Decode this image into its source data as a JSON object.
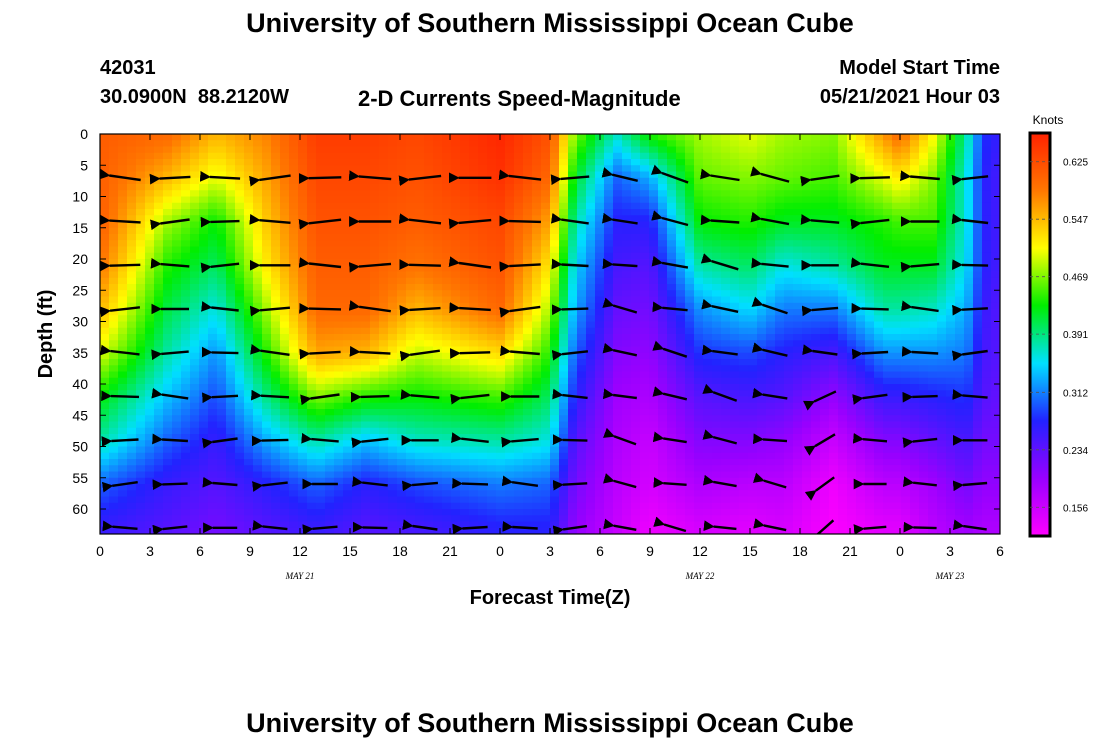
{
  "page": {
    "title_top": "University of Southern Mississippi Ocean Cube",
    "title_bottom": "University of Southern Mississippi Ocean Cube",
    "station_id": "42031",
    "location": "30.0900N  88.2120W",
    "plot_title": "2-D Currents Speed-Magnitude",
    "model_start_label": "Model Start Time",
    "model_start_value": "05/21/2021 Hour 03"
  },
  "colors": {
    "ramp": [
      "#ff00ff",
      "#9900ff",
      "#2222ff",
      "#00e0ff",
      "#00ee00",
      "#ffff00",
      "#ff7700",
      "#ff2200"
    ],
    "arrow": "#000000"
  },
  "chart_data": {
    "type": "heatmap",
    "title": "2-D Currents Speed-Magnitude",
    "xlabel": "Forecast Time(Z)",
    "ylabel": "Depth (ft)",
    "x_range_hours": [
      0,
      54
    ],
    "y_range_ft": [
      0,
      64
    ],
    "x_ticks": [
      {
        "h": 0,
        "label": "0"
      },
      {
        "h": 3,
        "label": "3"
      },
      {
        "h": 6,
        "label": "6"
      },
      {
        "h": 9,
        "label": "9"
      },
      {
        "h": 12,
        "label": "12"
      },
      {
        "h": 15,
        "label": "15"
      },
      {
        "h": 18,
        "label": "18"
      },
      {
        "h": 21,
        "label": "21"
      },
      {
        "h": 24,
        "label": "0"
      },
      {
        "h": 27,
        "label": "3"
      },
      {
        "h": 30,
        "label": "6"
      },
      {
        "h": 33,
        "label": "9"
      },
      {
        "h": 36,
        "label": "12"
      },
      {
        "h": 39,
        "label": "15"
      },
      {
        "h": 42,
        "label": "18"
      },
      {
        "h": 45,
        "label": "21"
      },
      {
        "h": 48,
        "label": "0"
      },
      {
        "h": 51,
        "label": "3"
      },
      {
        "h": 54,
        "label": "6"
      }
    ],
    "date_labels": [
      {
        "h": 12,
        "label": "MAY 21"
      },
      {
        "h": 36,
        "label": "MAY 22"
      },
      {
        "h": 51,
        "label": "MAY 23"
      }
    ],
    "y_ticks": [
      0,
      5,
      10,
      15,
      20,
      25,
      30,
      35,
      40,
      45,
      50,
      55,
      60
    ],
    "colorbar": {
      "units": "Knots",
      "min": 0.117,
      "max": 0.664,
      "labels": [
        "0.625",
        "0.547",
        "0.469",
        "0.391",
        "0.312",
        "0.234",
        "0.156"
      ],
      "label_values": [
        0.625,
        0.547,
        0.469,
        0.391,
        0.312,
        0.234,
        0.156
      ]
    },
    "speed_profiles": {
      "depths_ft": [
        0,
        7,
        14,
        21,
        28,
        35,
        42,
        49,
        56,
        63
      ],
      "columns": [
        {
          "h": 0,
          "v": [
            0.61,
            0.61,
            0.61,
            0.59,
            0.55,
            0.5,
            0.43,
            0.38,
            0.3,
            0.26
          ]
        },
        {
          "h": 4,
          "v": [
            0.6,
            0.55,
            0.48,
            0.44,
            0.41,
            0.38,
            0.34,
            0.3,
            0.26,
            0.24
          ]
        },
        {
          "h": 7,
          "v": [
            0.55,
            0.5,
            0.43,
            0.4,
            0.36,
            0.32,
            0.29,
            0.26,
            0.24,
            0.22
          ]
        },
        {
          "h": 10,
          "v": [
            0.58,
            0.56,
            0.54,
            0.52,
            0.48,
            0.44,
            0.39,
            0.33,
            0.27,
            0.24
          ]
        },
        {
          "h": 13,
          "v": [
            0.64,
            0.63,
            0.62,
            0.61,
            0.6,
            0.56,
            0.47,
            0.38,
            0.3,
            0.26
          ]
        },
        {
          "h": 16,
          "v": [
            0.64,
            0.63,
            0.62,
            0.61,
            0.6,
            0.55,
            0.44,
            0.34,
            0.27,
            0.24
          ]
        },
        {
          "h": 19,
          "v": [
            0.63,
            0.62,
            0.61,
            0.59,
            0.55,
            0.49,
            0.43,
            0.37,
            0.29,
            0.25
          ]
        },
        {
          "h": 24,
          "v": [
            0.66,
            0.65,
            0.63,
            0.62,
            0.6,
            0.53,
            0.45,
            0.38,
            0.31,
            0.27
          ]
        },
        {
          "h": 27,
          "v": [
            0.62,
            0.6,
            0.56,
            0.52,
            0.48,
            0.44,
            0.4,
            0.36,
            0.3,
            0.27
          ]
        },
        {
          "h": 28.5,
          "v": [
            0.47,
            0.42,
            0.38,
            0.35,
            0.33,
            0.3,
            0.27,
            0.24,
            0.22,
            0.2
          ]
        },
        {
          "h": 31,
          "v": [
            0.37,
            0.3,
            0.27,
            0.25,
            0.23,
            0.21,
            0.19,
            0.18,
            0.17,
            0.16
          ]
        },
        {
          "h": 33,
          "v": [
            0.44,
            0.33,
            0.27,
            0.24,
            0.22,
            0.2,
            0.18,
            0.16,
            0.15,
            0.13
          ]
        },
        {
          "h": 36,
          "v": [
            0.48,
            0.46,
            0.43,
            0.38,
            0.32,
            0.28,
            0.24,
            0.21,
            0.18,
            0.15
          ]
        },
        {
          "h": 39,
          "v": [
            0.5,
            0.47,
            0.44,
            0.4,
            0.35,
            0.29,
            0.25,
            0.21,
            0.17,
            0.14
          ]
        },
        {
          "h": 41,
          "v": [
            0.48,
            0.46,
            0.42,
            0.36,
            0.31,
            0.27,
            0.24,
            0.2,
            0.17,
            0.15
          ]
        },
        {
          "h": 44,
          "v": [
            0.47,
            0.45,
            0.42,
            0.38,
            0.31,
            0.25,
            0.2,
            0.16,
            0.13,
            0.12
          ]
        },
        {
          "h": 47,
          "v": [
            0.57,
            0.5,
            0.44,
            0.42,
            0.38,
            0.32,
            0.26,
            0.21,
            0.17,
            0.14
          ]
        },
        {
          "h": 48,
          "v": [
            0.6,
            0.52,
            0.45,
            0.42,
            0.38,
            0.32,
            0.26,
            0.21,
            0.17,
            0.14
          ]
        },
        {
          "h": 50,
          "v": [
            0.51,
            0.47,
            0.45,
            0.42,
            0.37,
            0.32,
            0.27,
            0.23,
            0.19,
            0.17
          ]
        },
        {
          "h": 52,
          "v": [
            0.38,
            0.36,
            0.36,
            0.35,
            0.33,
            0.31,
            0.28,
            0.25,
            0.22,
            0.19
          ]
        },
        {
          "h": 53,
          "v": [
            0.28,
            0.27,
            0.27,
            0.27,
            0.26,
            0.25,
            0.24,
            0.22,
            0.2,
            0.18
          ]
        },
        {
          "h": 54,
          "v": [
            0.26,
            0.25,
            0.25,
            0.25,
            0.24,
            0.24,
            0.23,
            0.22,
            0.2,
            0.18
          ]
        }
      ]
    },
    "vectors": {
      "depths_ft": [
        7,
        14,
        21,
        28,
        35,
        42,
        49,
        56,
        63
      ],
      "times_h": [
        3,
        6,
        9,
        12,
        15,
        18,
        21,
        24,
        27,
        30,
        33,
        36,
        39,
        42,
        45,
        48,
        51,
        54
      ],
      "default_angle_deg": 180,
      "notes": "angles in degrees (0 = east, counter-clockwise positive); arrows point mostly westward"
    }
  }
}
